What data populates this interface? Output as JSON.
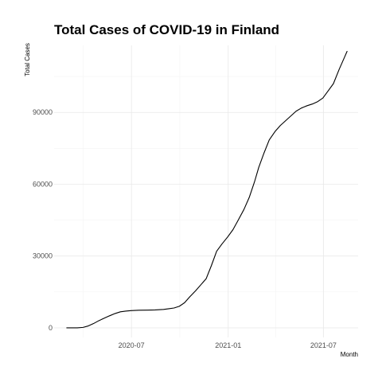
{
  "chart_data": {
    "type": "line",
    "title": "Total Cases of COVID-19 in Finland",
    "xlabel": "Month",
    "ylabel": "Total Cases",
    "x_ticks": [
      "2020-07",
      "2021-01",
      "2021-07"
    ],
    "y_ticks": [
      "0",
      "30000",
      "60000",
      "90000"
    ],
    "xlim": [
      "2020-02-05",
      "2021-09-05"
    ],
    "ylim": [
      -4000,
      118000
    ],
    "grid": true,
    "legend": "none",
    "series": [
      {
        "x": [
          "2020-02-29",
          "2020-03-10",
          "2020-03-20",
          "2020-03-31",
          "2020-04-10",
          "2020-04-20",
          "2020-04-30",
          "2020-05-10",
          "2020-05-20",
          "2020-05-31",
          "2020-06-10",
          "2020-06-20",
          "2020-06-30",
          "2020-07-15",
          "2020-07-31",
          "2020-08-15",
          "2020-08-31",
          "2020-09-10",
          "2020-09-20",
          "2020-09-30",
          "2020-10-10",
          "2020-10-20",
          "2020-10-31",
          "2020-11-10",
          "2020-11-20",
          "2020-11-30",
          "2020-12-10",
          "2020-12-20",
          "2020-12-31",
          "2021-01-10",
          "2021-01-20",
          "2021-01-31",
          "2021-02-10",
          "2021-02-20",
          "2021-02-28",
          "2021-03-10",
          "2021-03-20",
          "2021-03-31",
          "2021-04-10",
          "2021-04-20",
          "2021-04-30",
          "2021-05-10",
          "2021-05-20",
          "2021-05-31",
          "2021-06-10",
          "2021-06-20",
          "2021-06-30",
          "2021-07-10",
          "2021-07-20",
          "2021-07-31",
          "2021-08-10",
          "2021-08-15"
        ],
        "values": [
          0,
          0,
          0,
          200,
          800,
          1800,
          3000,
          4000,
          5000,
          6000,
          6700,
          7000,
          7200,
          7350,
          7400,
          7500,
          7700,
          8000,
          8300,
          9000,
          10500,
          13000,
          15500,
          18000,
          20500,
          26000,
          32000,
          35000,
          38000,
          41000,
          45000,
          49500,
          54500,
          61000,
          67000,
          73000,
          78500,
          82000,
          84500,
          86500,
          88500,
          90500,
          91800,
          92800,
          93500,
          94500,
          96000,
          99000,
          102000,
          108000,
          113000,
          115500
        ]
      }
    ]
  }
}
